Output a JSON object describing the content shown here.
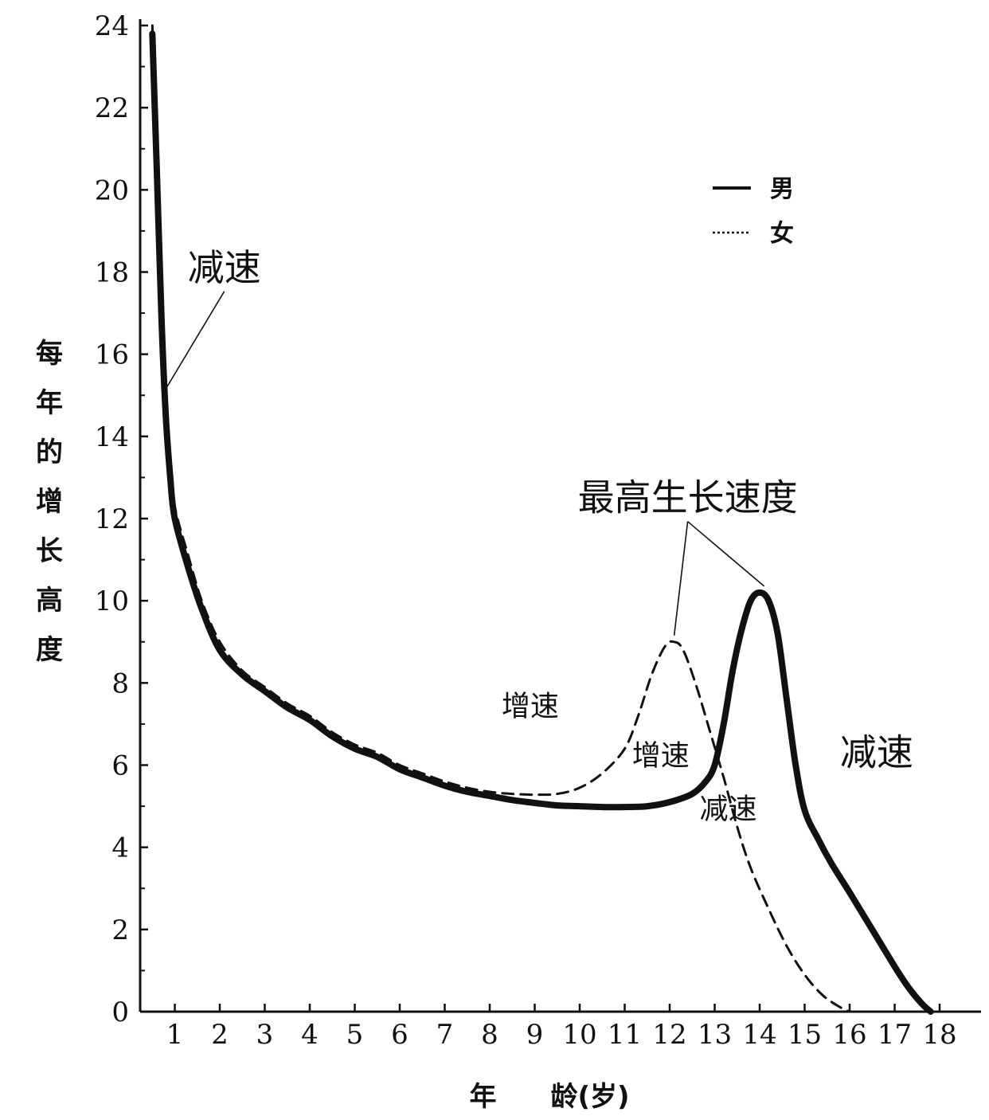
{
  "chart_data": {
    "type": "line",
    "xlabel": "年　　龄(岁)",
    "ylabel": "每年的增长高度",
    "xlim": [
      0,
      18.5
    ],
    "ylim": [
      0,
      24
    ],
    "x_ticks": [
      1,
      2,
      3,
      4,
      5,
      6,
      7,
      8,
      9,
      10,
      11,
      12,
      13,
      14,
      15,
      16,
      17,
      18
    ],
    "y_ticks": [
      0,
      2,
      4,
      6,
      8,
      10,
      12,
      14,
      16,
      18,
      20,
      22,
      24
    ],
    "series": [
      {
        "name": "男",
        "style": "solid",
        "points": [
          [
            0.5,
            23.8
          ],
          [
            0.6,
            20.5
          ],
          [
            0.7,
            17
          ],
          [
            0.8,
            14.5
          ],
          [
            0.9,
            13
          ],
          [
            1,
            12
          ],
          [
            1.3,
            10.8
          ],
          [
            1.6,
            9.8
          ],
          [
            2,
            8.8
          ],
          [
            2.5,
            8.2
          ],
          [
            3,
            7.8
          ],
          [
            3.5,
            7.4
          ],
          [
            4,
            7.1
          ],
          [
            4.5,
            6.7
          ],
          [
            5,
            6.4
          ],
          [
            5.5,
            6.2
          ],
          [
            6,
            5.9
          ],
          [
            6.5,
            5.7
          ],
          [
            7,
            5.5
          ],
          [
            7.5,
            5.35
          ],
          [
            8,
            5.25
          ],
          [
            8.5,
            5.15
          ],
          [
            9,
            5.08
          ],
          [
            9.5,
            5.02
          ],
          [
            10,
            5.0
          ],
          [
            10.5,
            4.98
          ],
          [
            11,
            4.98
          ],
          [
            11.5,
            5.0
          ],
          [
            12,
            5.1
          ],
          [
            12.5,
            5.3
          ],
          [
            12.8,
            5.6
          ],
          [
            13,
            6.0
          ],
          [
            13.2,
            7.0
          ],
          [
            13.4,
            8.3
          ],
          [
            13.6,
            9.3
          ],
          [
            13.8,
            10.0
          ],
          [
            14,
            10.2
          ],
          [
            14.2,
            10.0
          ],
          [
            14.4,
            9.2
          ],
          [
            14.6,
            7.6
          ],
          [
            14.8,
            6.0
          ],
          [
            15,
            4.9
          ],
          [
            15.3,
            4.2
          ],
          [
            15.6,
            3.6
          ],
          [
            16,
            2.9
          ],
          [
            16.5,
            2.0
          ],
          [
            17,
            1.1
          ],
          [
            17.3,
            0.6
          ],
          [
            17.6,
            0.2
          ],
          [
            17.8,
            0
          ]
        ]
      },
      {
        "name": "女",
        "style": "dashed",
        "points": [
          [
            0.5,
            24
          ],
          [
            0.6,
            21
          ],
          [
            0.7,
            17.5
          ],
          [
            0.8,
            15
          ],
          [
            0.9,
            13.5
          ],
          [
            1,
            12.3
          ],
          [
            1.3,
            11.1
          ],
          [
            1.6,
            10.0
          ],
          [
            2,
            9.0
          ],
          [
            2.5,
            8.3
          ],
          [
            3,
            7.9
          ],
          [
            3.5,
            7.5
          ],
          [
            4,
            7.2
          ],
          [
            4.5,
            6.8
          ],
          [
            5,
            6.5
          ],
          [
            5.5,
            6.3
          ],
          [
            6,
            6.0
          ],
          [
            6.5,
            5.8
          ],
          [
            7,
            5.6
          ],
          [
            7.5,
            5.45
          ],
          [
            8,
            5.35
          ],
          [
            8.5,
            5.3
          ],
          [
            9,
            5.28
          ],
          [
            9.5,
            5.3
          ],
          [
            10,
            5.45
          ],
          [
            10.5,
            5.8
          ],
          [
            11,
            6.4
          ],
          [
            11.3,
            7.2
          ],
          [
            11.6,
            8.2
          ],
          [
            11.9,
            8.9
          ],
          [
            12.1,
            9.0
          ],
          [
            12.3,
            8.8
          ],
          [
            12.6,
            7.9
          ],
          [
            12.9,
            6.8
          ],
          [
            13.2,
            5.7
          ],
          [
            13.5,
            4.5
          ],
          [
            13.8,
            3.5
          ],
          [
            14.2,
            2.5
          ],
          [
            14.6,
            1.6
          ],
          [
            15,
            0.9
          ],
          [
            15.4,
            0.4
          ],
          [
            15.8,
            0.1
          ],
          [
            16,
            0
          ]
        ]
      }
    ],
    "legend": {
      "position": "top-right",
      "entries": [
        "男",
        "女"
      ]
    },
    "annotations": [
      {
        "text": "减速",
        "x": 2.1,
        "y": 17.8,
        "size": "large",
        "pointer": [
          0.8,
          15
        ]
      },
      {
        "text": "最高生长速度",
        "x": 12.4,
        "y": 12.2,
        "size": "large",
        "pointers": [
          [
            12.1,
            9.0
          ],
          [
            14.1,
            10.2
          ]
        ]
      },
      {
        "text": "增速",
        "x": 8.9,
        "y": 7.2,
        "size": "medium"
      },
      {
        "text": "增速",
        "x": 11.8,
        "y": 6.0,
        "size": "medium"
      },
      {
        "text": "减速",
        "x": 13.3,
        "y": 4.7,
        "size": "medium"
      },
      {
        "text": "减速",
        "x": 16.6,
        "y": 6.0,
        "size": "large"
      }
    ],
    "grid": false
  }
}
